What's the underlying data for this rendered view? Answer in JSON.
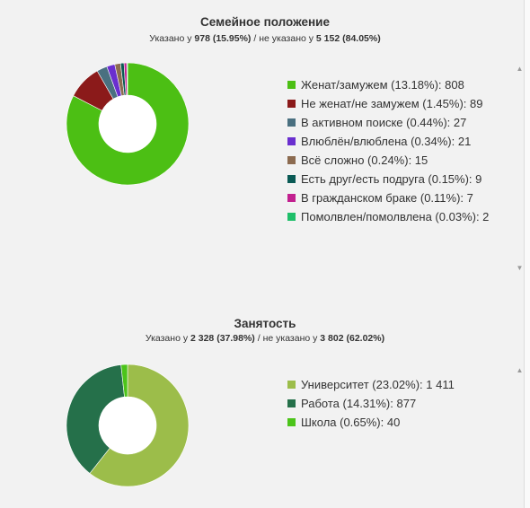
{
  "charts": [
    {
      "id": "marital",
      "title": "Семейное положение",
      "subtitle": {
        "specified_prefix": "Указано у ",
        "specified": "978 (15.95%)",
        "separator": " / не указано у ",
        "unspecified": "5 152 (84.05%)"
      }
    },
    {
      "id": "employment",
      "title": "Занятость",
      "subtitle": {
        "specified_prefix": "Указано у ",
        "specified": "2 328 (37.98%)",
        "separator": " / не указано у ",
        "unspecified": "3 802 (62.02%)"
      }
    }
  ],
  "chart_data": [
    {
      "type": "pie",
      "title": "Семейное положение",
      "donut": true,
      "legend_position": "right",
      "series": [
        {
          "name": "Женат/замужем",
          "percent": 13.18,
          "value": 808,
          "color": "#4cbf14",
          "label": "Женат/замужем (13.18%): 808"
        },
        {
          "name": "Не женат/не замужем",
          "percent": 1.45,
          "value": 89,
          "color": "#8b1a1a",
          "label": "Не женат/не замужем (1.45%): 89"
        },
        {
          "name": "В активном поиске",
          "percent": 0.44,
          "value": 27,
          "color": "#4a7080",
          "label": "В активном поиске (0.44%): 27"
        },
        {
          "name": "Влюблён/влюблена",
          "percent": 0.34,
          "value": 21,
          "color": "#6a2fcf",
          "label": "Влюблён/влюблена (0.34%): 21"
        },
        {
          "name": "Всё сложно",
          "percent": 0.24,
          "value": 15,
          "color": "#8c6b50",
          "label": "Всё сложно (0.24%): 15"
        },
        {
          "name": "Есть друг/есть подруга",
          "percent": 0.15,
          "value": 9,
          "color": "#0a5a55",
          "label": "Есть друг/есть подруга (0.15%): 9"
        },
        {
          "name": "В гражданском браке",
          "percent": 0.11,
          "value": 7,
          "color": "#c2208f",
          "label": "В гражданском браке (0.11%): 7"
        },
        {
          "name": "Помолвлен/помолвлена",
          "percent": 0.03,
          "value": 2,
          "color": "#1fbf6a",
          "label": "Помолвлен/помолвлена (0.03%): 2"
        }
      ]
    },
    {
      "type": "pie",
      "title": "Занятость",
      "donut": true,
      "legend_position": "right",
      "series": [
        {
          "name": "Университет",
          "percent": 23.02,
          "value": 1411,
          "color": "#9cbd4a",
          "label": "Университет (23.02%): 1 411"
        },
        {
          "name": "Работа",
          "percent": 14.31,
          "value": 877,
          "color": "#25704a",
          "label": "Работа (14.31%): 877"
        },
        {
          "name": "Школа",
          "percent": 0.65,
          "value": 40,
          "color": "#4cc41a",
          "label": "Школа (0.65%): 40"
        }
      ]
    }
  ],
  "scroll_arrows": {
    "up": "▲",
    "down": "▼"
  }
}
